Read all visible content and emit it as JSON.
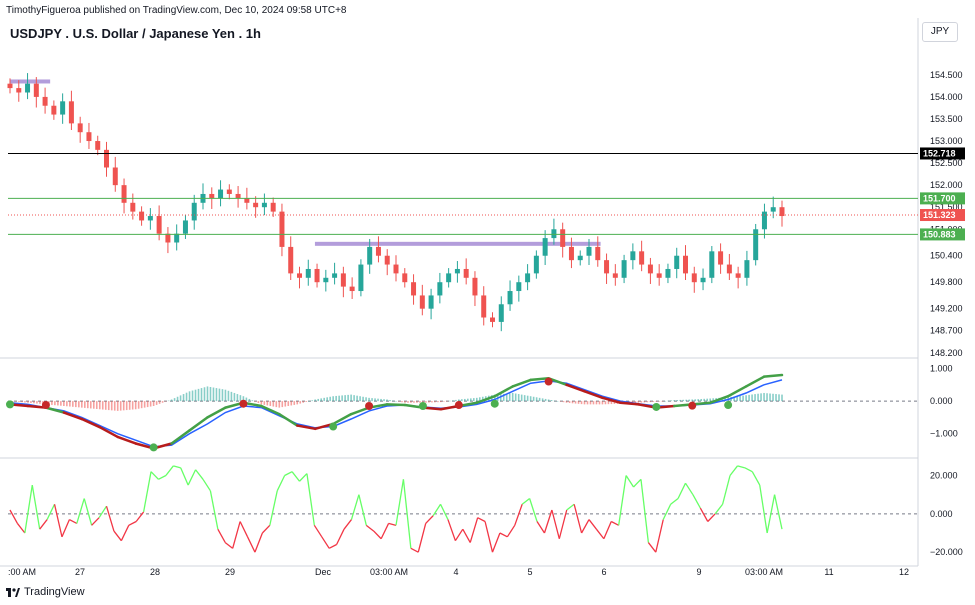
{
  "header": {
    "published": "TimothyFigueroa published on TradingView.com, Dec 10, 2024 09:58 UTC+8"
  },
  "symbol": "USDJPY . U.S. Dollar / Japanese Yen . 1h",
  "currency": "JPY",
  "footer": {
    "brand": "TradingView"
  },
  "colors": {
    "up": "#26a69a",
    "down": "#ef5350",
    "hline_black": "#000000",
    "hline_green": "#4caf50",
    "price_line": "#ef5350",
    "zone": "#b39ddb",
    "macd_fast": "#43a047",
    "macd_slow": "#b71c1c",
    "signal_line": "#2962ff",
    "osc_up": "#66ff66",
    "osc_down": "#f23645"
  },
  "chart_data": [
    {
      "type": "candlestick",
      "title": "USDJPY . U.S. Dollar / Japanese Yen . 1h",
      "y_ticks": [
        "154.500",
        "154.000",
        "153.500",
        "153.000",
        "152.500",
        "152.000",
        "151.500",
        "151.000",
        "150.400",
        "149.800",
        "149.200",
        "148.700",
        "148.200"
      ],
      "ylim": [
        148.15,
        154.95
      ],
      "x_ticks": [
        ":00 AM",
        "27",
        "28",
        "29",
        "Dec",
        "03:00 AM",
        "4",
        "5",
        "6",
        "9",
        "03:00 AM",
        "11",
        "12"
      ],
      "horizontal_lines": [
        {
          "value": 152.718,
          "label": "152.718",
          "color": "black"
        },
        {
          "value": 151.7,
          "label": "151.700",
          "color": "green"
        },
        {
          "value": 150.883,
          "label": "150.883",
          "color": "green"
        }
      ],
      "last_price": {
        "value": 151.323,
        "label": "151.323"
      },
      "zones": [
        {
          "start_index": 0,
          "end_index": 8,
          "value": 154.35
        },
        {
          "start_index": 61,
          "end_index": 116,
          "value": 150.67
        }
      ],
      "close_path": [
        154.2,
        154.1,
        154.3,
        154.0,
        153.8,
        153.6,
        153.9,
        153.4,
        153.2,
        153.0,
        152.8,
        152.4,
        152.0,
        151.6,
        151.4,
        151.2,
        151.3,
        150.9,
        150.7,
        150.9,
        151.2,
        151.6,
        151.8,
        151.7,
        151.9,
        151.8,
        151.7,
        151.6,
        151.5,
        151.6,
        151.4,
        150.6,
        150.0,
        149.9,
        150.1,
        149.8,
        149.9,
        150.0,
        149.7,
        149.6,
        150.2,
        150.6,
        150.4,
        150.2,
        150.0,
        149.8,
        149.5,
        149.2,
        149.5,
        149.8,
        150.0,
        150.1,
        149.9,
        149.5,
        149.0,
        148.9,
        149.3,
        149.6,
        149.8,
        150.0,
        150.4,
        150.8,
        151.0,
        150.6,
        150.3,
        150.4,
        150.6,
        150.3,
        150.0,
        149.9,
        150.3,
        150.5,
        150.2,
        150.0,
        149.9,
        150.1,
        150.4,
        150.0,
        149.8,
        149.9,
        150.5,
        150.2,
        150.0,
        149.9,
        150.3,
        151.0,
        151.4,
        151.5,
        151.3
      ],
      "tag_labels": [
        "151.700",
        "151.323",
        "150.883",
        "152.718"
      ]
    },
    {
      "type": "line",
      "title": "",
      "y_ticks": [
        "1.000",
        "0.000",
        "−1.000"
      ],
      "ylim": [
        -1.5,
        1.2
      ],
      "series": [
        {
          "values": [
            -0.1,
            -0.15,
            -0.2,
            -0.35,
            -0.55,
            -0.8,
            -1.1,
            -1.3,
            -1.45,
            -1.3,
            -0.9,
            -0.5,
            -0.2,
            -0.05,
            -0.15,
            -0.4,
            -0.75,
            -0.85,
            -0.7,
            -0.4,
            -0.2,
            -0.1,
            -0.12,
            -0.2,
            -0.25,
            -0.15,
            -0.05,
            0.15,
            0.45,
            0.65,
            0.7,
            0.5,
            0.3,
            0.1,
            -0.05,
            -0.1,
            -0.2,
            -0.15,
            -0.1,
            -0.05,
            0.15,
            0.45,
            0.75,
            0.8
          ]
        },
        {
          "values": [
            -0.05,
            -0.1,
            -0.2,
            -0.3,
            -0.5,
            -0.75,
            -1.0,
            -1.2,
            -1.4,
            -1.35,
            -1.0,
            -0.7,
            -0.35,
            -0.15,
            -0.2,
            -0.45,
            -0.7,
            -0.82,
            -0.78,
            -0.55,
            -0.3,
            -0.15,
            -0.12,
            -0.18,
            -0.22,
            -0.18,
            -0.1,
            0.05,
            0.3,
            0.55,
            0.62,
            0.55,
            0.35,
            0.15,
            0.0,
            -0.08,
            -0.15,
            -0.15,
            -0.12,
            -0.08,
            0.05,
            0.25,
            0.5,
            0.65
          ]
        }
      ],
      "histogram": [
        0,
        -0.05,
        -0.1,
        -0.15,
        -0.2,
        -0.25,
        -0.3,
        -0.25,
        -0.15,
        0.05,
        0.3,
        0.45,
        0.35,
        0.15,
        -0.1,
        -0.2,
        -0.1,
        0.05,
        0.15,
        0.2,
        0.1,
        0.05,
        -0.05,
        -0.05,
        -0.03,
        0.05,
        0.1,
        0.2,
        0.25,
        0.15,
        0.05,
        -0.05,
        -0.1,
        -0.1,
        -0.08,
        -0.05,
        -0.02,
        0.03,
        0.05,
        0.08,
        0.12,
        0.18,
        0.25,
        0.2
      ],
      "cross_indices": [
        0,
        2,
        15,
        22,
        27,
        31,
        34,
        36,
        40,
        46,
        53,
        58,
        61
      ]
    },
    {
      "type": "line",
      "title": "",
      "y_ticks": [
        "20.000",
        "0.000",
        "−20.000"
      ],
      "ylim": [
        -22,
        26
      ],
      "series": [
        {
          "values": [
            2,
            -5,
            -10,
            15,
            -8,
            -3,
            5,
            -12,
            -3,
            -5,
            8,
            -6,
            -2,
            4,
            -9,
            -14,
            -6,
            -4,
            1,
            22,
            18,
            20,
            25,
            24,
            15,
            23,
            18,
            12,
            -8,
            -15,
            -18,
            -4,
            -12,
            -20,
            -10,
            -6,
            12,
            20,
            22,
            17,
            21,
            -6,
            -12,
            -18,
            -16,
            -8,
            -3,
            10,
            -6,
            -9,
            -13,
            -5,
            -6,
            18,
            -18,
            -20,
            -5,
            -1,
            5,
            -3,
            -14,
            -8,
            -15,
            -2,
            -4,
            -20,
            -10,
            -12,
            -6,
            5,
            8,
            -4,
            -10,
            2,
            -13,
            2,
            5,
            -10,
            -3,
            -8,
            -13,
            -4,
            -6,
            20,
            14,
            18,
            -15,
            -20,
            -3,
            5,
            8,
            16,
            10,
            3,
            -4,
            0,
            5,
            20,
            25,
            24,
            22,
            15,
            -10,
            10,
            -8
          ]
        }
      ]
    }
  ]
}
